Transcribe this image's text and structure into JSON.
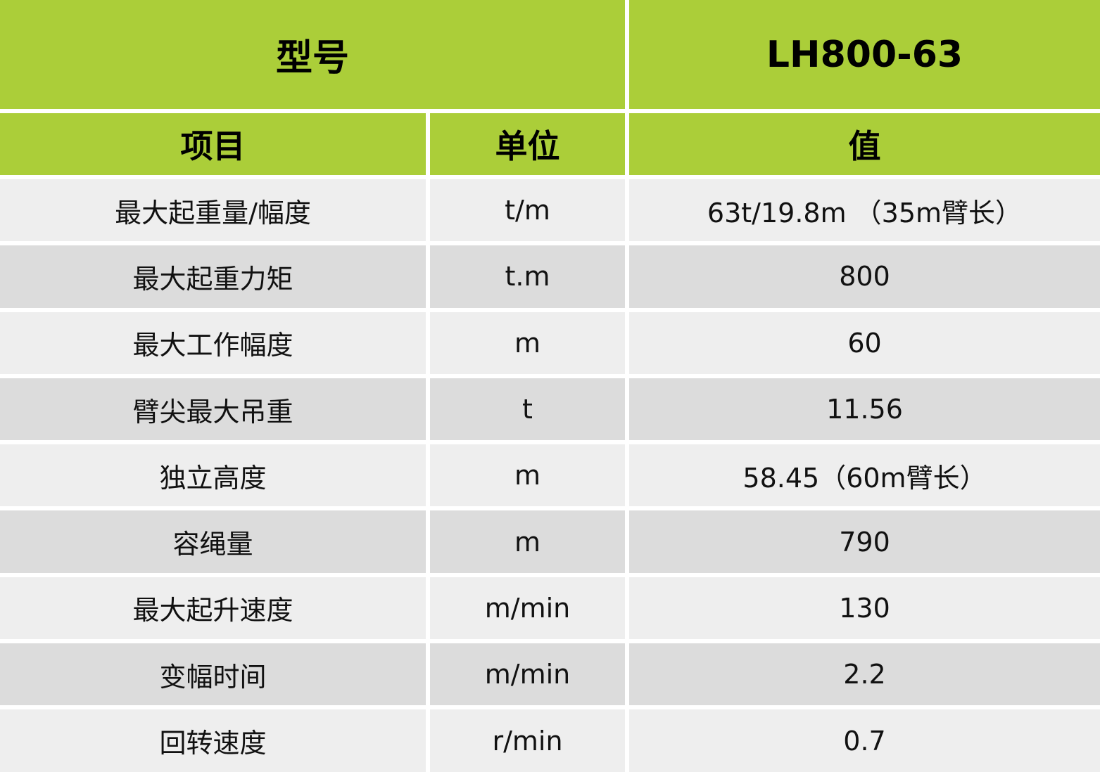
{
  "header": {
    "model_label": "型号",
    "model_value": "LH800-63"
  },
  "columns": [
    "项目",
    "单位",
    "值"
  ],
  "rows": [
    [
      "最大起重量/幅度",
      "t/m",
      "63t/19.8m （35m臂长）"
    ],
    [
      "最大起重力矩",
      "t.m",
      "800"
    ],
    [
      "最大工作幅度",
      "m",
      "60"
    ],
    [
      "臂尖最大吊重",
      "t",
      "11.56"
    ],
    [
      "独立高度",
      "m",
      "58.45（60m臂长）"
    ],
    [
      "容绳量",
      "m",
      "790"
    ],
    [
      "最大起升速度",
      "m/min",
      "130"
    ],
    [
      "变幅时间",
      "m/min",
      "2.2"
    ],
    [
      "回转速度",
      "r/min",
      "0.7"
    ]
  ],
  "colors": {
    "header": "#abce39",
    "row_light": "#eeeeee",
    "row_dark": "#dcdcdc"
  }
}
